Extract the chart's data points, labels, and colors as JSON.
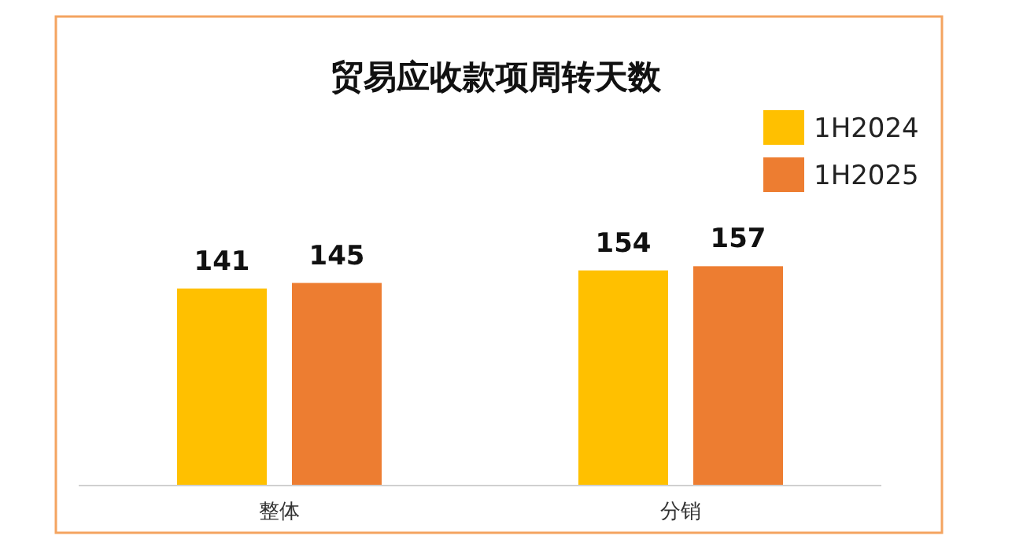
{
  "chart_data": {
    "type": "bar",
    "title": "贸易应收款项周转天数",
    "categories": [
      "整体",
      "分销"
    ],
    "series": [
      {
        "name": "1H2024",
        "color": "#ffc000",
        "values": [
          141,
          154
        ]
      },
      {
        "name": "1H2025",
        "color": "#ed7d31",
        "values": [
          145,
          157
        ]
      }
    ],
    "data_labels": true,
    "legend": "top right"
  }
}
